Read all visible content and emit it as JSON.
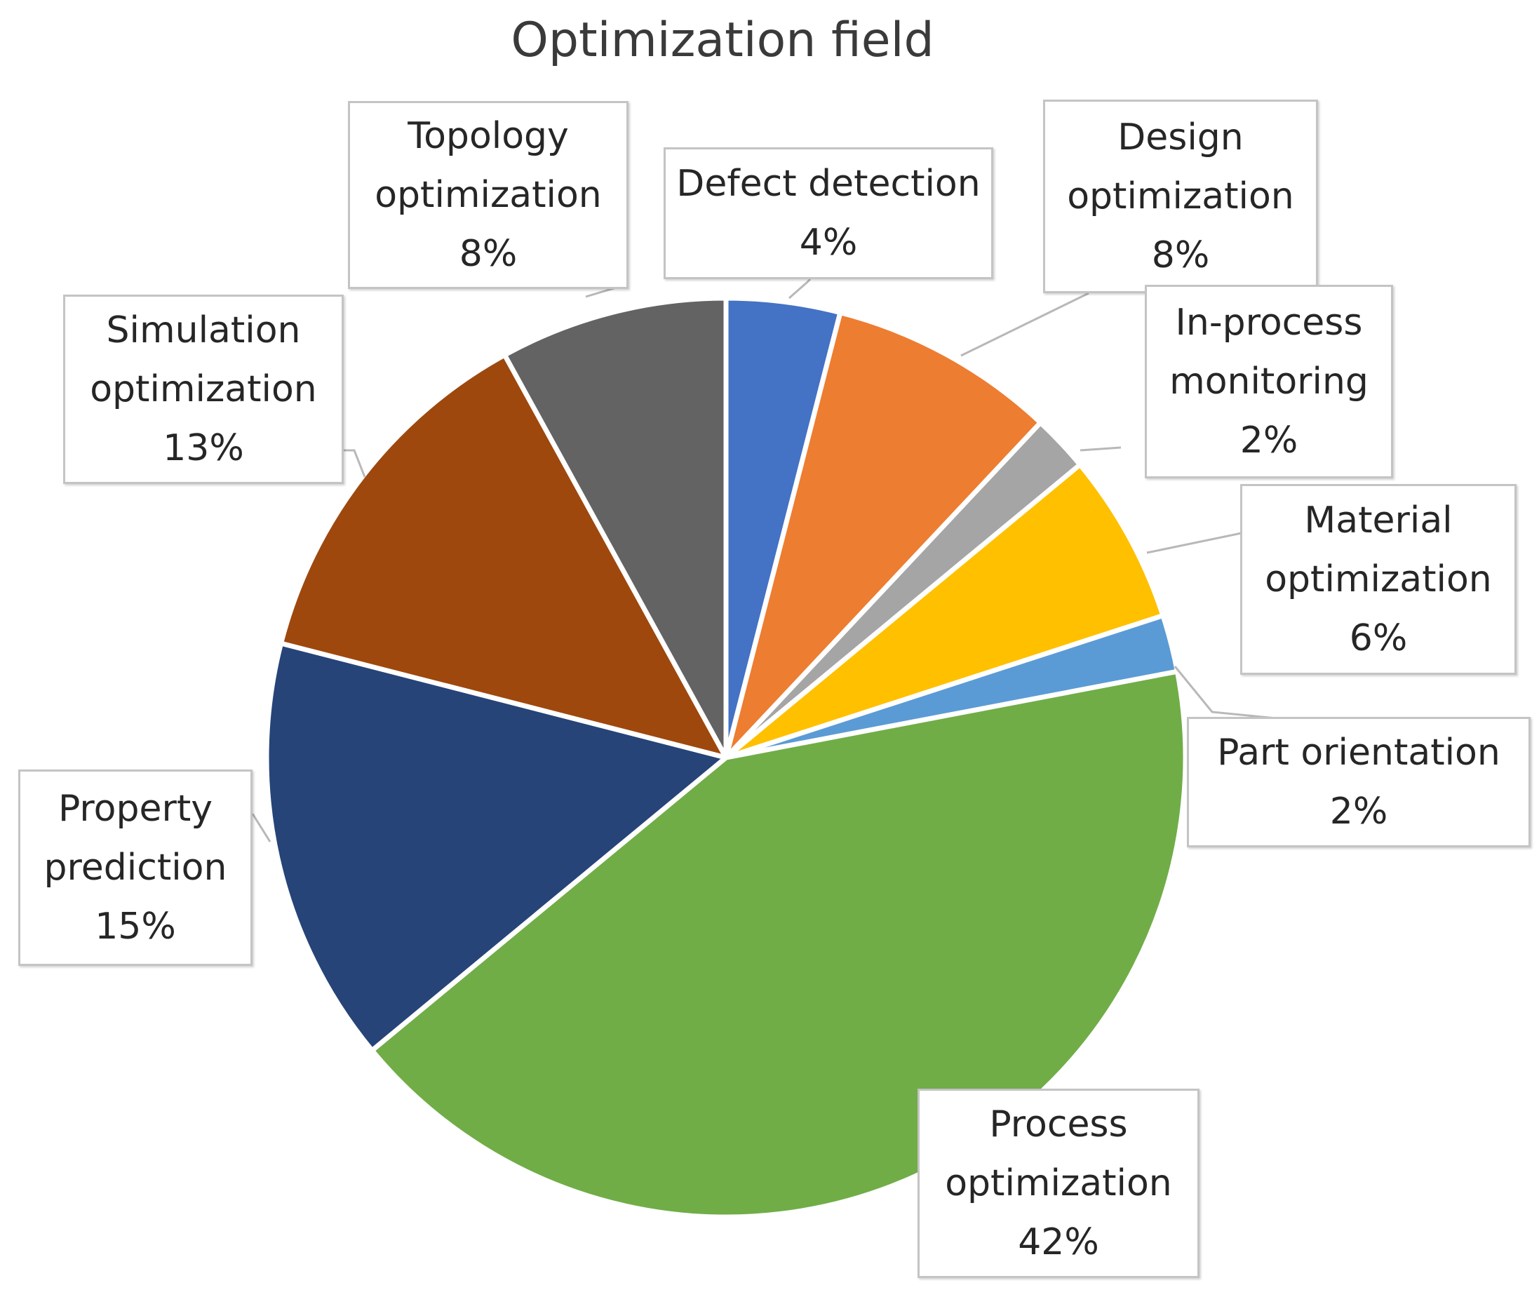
{
  "chart_data": {
    "type": "pie",
    "title": "Optimization field",
    "slices": [
      {
        "key": "defect",
        "name": "Defect detection",
        "value": 4,
        "label": "4%",
        "color": "#4472C4"
      },
      {
        "key": "design",
        "name": "Design optimization",
        "value": 8,
        "label": "8%",
        "color": "#ED7D31"
      },
      {
        "key": "inprocess",
        "name": "In-process monitoring",
        "value": 2,
        "label": "2%",
        "color": "#A5A5A5"
      },
      {
        "key": "material",
        "name": "Material optimization",
        "value": 6,
        "label": "6%",
        "color": "#FFC000"
      },
      {
        "key": "part",
        "name": "Part orientation",
        "value": 2,
        "label": "2%",
        "color": "#5B9BD5"
      },
      {
        "key": "process",
        "name": "Process optimization",
        "value": 42,
        "label": "42%",
        "color": "#70AD47"
      },
      {
        "key": "property",
        "name": "Property prediction",
        "value": 15,
        "label": "15%",
        "color": "#264478"
      },
      {
        "key": "simulation",
        "name": "Simulation optimization",
        "value": 13,
        "label": "13%",
        "color": "#9E480E"
      },
      {
        "key": "topology",
        "name": "Topology optimization",
        "value": 8,
        "label": "8%",
        "color": "#636363"
      }
    ]
  },
  "labels": {
    "defect": {
      "line1": "Defect detection",
      "pct": "4%"
    },
    "design": {
      "line1": "Design",
      "line2": "optimization",
      "pct": "8%"
    },
    "inprocess": {
      "line1": "In-process",
      "line2": "monitoring",
      "pct": "2%"
    },
    "material": {
      "line1": "Material",
      "line2": "optimization",
      "pct": "6%"
    },
    "part": {
      "line1": "Part orientation",
      "pct": "2%"
    },
    "process": {
      "line1": "Process",
      "line2": "optimization",
      "pct": "42%"
    },
    "property": {
      "line1": "Property",
      "line2": "prediction",
      "pct": "15%"
    },
    "simulation": {
      "line1": "Simulation",
      "line2": "optimization",
      "pct": "13%"
    },
    "topology": {
      "line1": "Topology",
      "line2": "optimization",
      "pct": "8%"
    }
  }
}
